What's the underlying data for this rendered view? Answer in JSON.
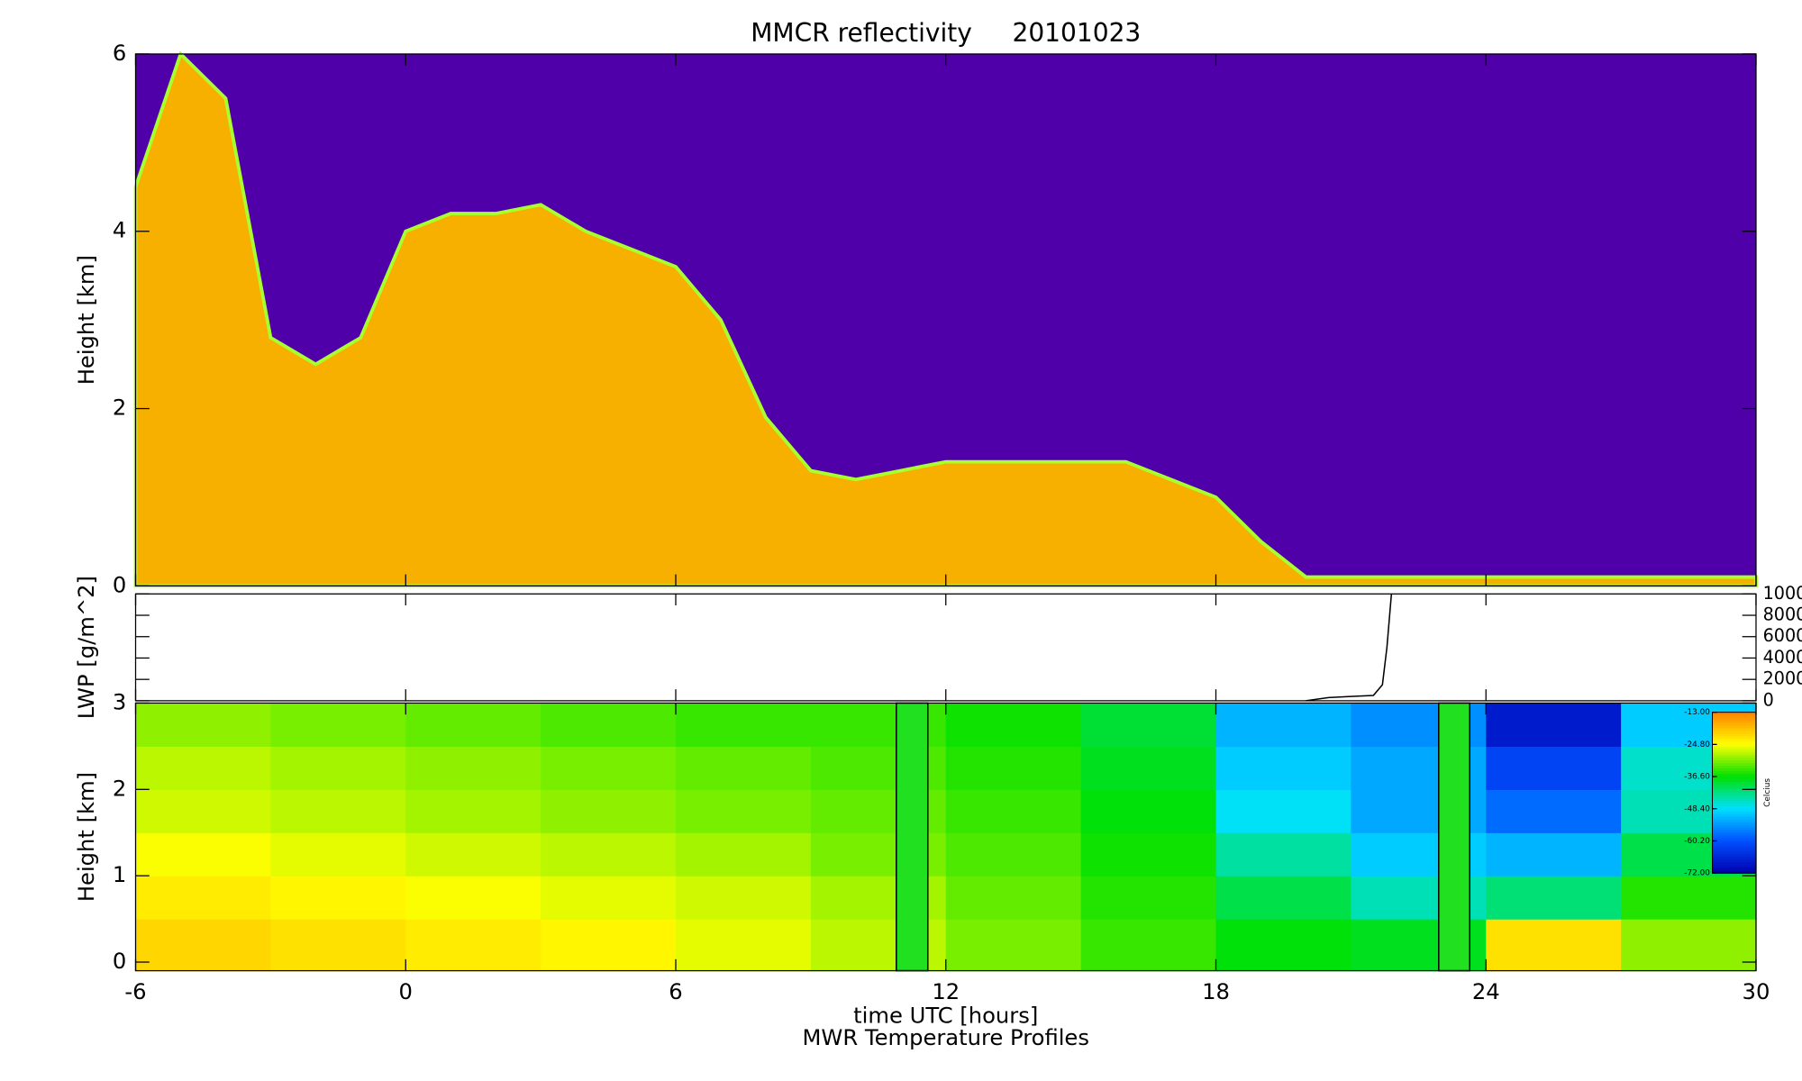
{
  "chart_data": [
    {
      "type": "area",
      "title": "MMCR reflectivity     20101023",
      "ylabel": "Height [km]",
      "x": [
        -6,
        -5,
        -4,
        -3,
        -2,
        -1,
        0,
        1,
        2,
        3,
        4,
        5,
        6,
        7,
        8,
        9,
        10,
        11,
        12,
        13,
        14,
        15,
        16,
        17,
        18,
        19,
        20,
        21,
        22,
        23,
        24,
        25,
        26,
        27,
        28,
        29,
        30
      ],
      "values": [
        4.5,
        6,
        5.5,
        2.8,
        2.5,
        2.8,
        4,
        4.2,
        4.2,
        4.3,
        4,
        3.8,
        3.6,
        3,
        1.9,
        1.3,
        1.2,
        1.3,
        1.4,
        1.4,
        1.4,
        1.4,
        1.4,
        1.2,
        1,
        0.5,
        0.1,
        0.1,
        0.1,
        0.1,
        0.1,
        0.1,
        0.1,
        0.1,
        0.1,
        0.1,
        0.1
      ],
      "color": "#f8b000",
      "edge_color": "#a8ff30",
      "background": "#5000a8",
      "xlim": [
        -6,
        30
      ],
      "ylim": [
        0,
        6
      ],
      "yticks": [
        0,
        2,
        4,
        6
      ]
    },
    {
      "type": "line",
      "ylabel": "LWP [g/m^2]",
      "x": [
        20,
        20.5,
        21,
        21.5,
        21.7,
        21.8,
        21.9
      ],
      "values": [
        0,
        300,
        400,
        500,
        1500,
        5000,
        10000
      ],
      "color": "#000000",
      "xlim": [
        -6,
        30
      ],
      "ylim": [
        0,
        10000
      ],
      "y2ticks": [
        0,
        2000,
        4000,
        6000,
        8000,
        10000
      ]
    },
    {
      "type": "heatmap",
      "ylabel": "Height [km]",
      "xlabel": "time UTC [hours]",
      "subtitle": "MWR Temperature Profiles",
      "x_edges": [
        -6,
        -3,
        0,
        3,
        6,
        9,
        12,
        15,
        18,
        21,
        24,
        27,
        30
      ],
      "y_edges": [
        -0.1,
        0.5,
        1,
        1.5,
        2,
        2.5,
        3
      ],
      "z": [
        [
          -21,
          -22,
          -23,
          -24,
          -26,
          -28,
          -31,
          -34,
          -37,
          -38,
          -22,
          -30
        ],
        [
          -23,
          -24,
          -25,
          -26,
          -27,
          -29,
          -32,
          -35,
          -40,
          -45,
          -42,
          -35
        ],
        [
          -25,
          -26,
          -27,
          -28,
          -29,
          -31,
          -33,
          -36,
          -44,
          -50,
          -52,
          -40
        ],
        [
          -27,
          -28,
          -29,
          -30,
          -31,
          -32,
          -34,
          -37,
          -48,
          -53,
          -58,
          -45
        ],
        [
          -28,
          -29,
          -30,
          -31,
          -32,
          -33,
          -35,
          -38,
          -50,
          -53,
          -62,
          -46
        ],
        [
          -30,
          -31,
          -32,
          -33,
          -34,
          -34,
          -36,
          -39,
          -52,
          -55,
          -68,
          -50
        ]
      ],
      "gaps": [
        [
          10.9,
          11.6
        ],
        [
          22.95,
          23.64
        ]
      ],
      "gap_color": "#20e020",
      "xlim": [
        -6,
        30
      ],
      "ylim": [
        -0.1,
        3
      ],
      "xticks": [
        -6,
        0,
        6,
        12,
        18,
        24,
        30
      ],
      "yticks": [
        0,
        1,
        2,
        3
      ],
      "colorbar_label": "Celcius",
      "colorbar_ticks": [
        {
          "value": -13,
          "label": "-13.00"
        },
        {
          "value": -24.8,
          "label": "-24.80"
        },
        {
          "value": -36.6,
          "label": "-36.60"
        },
        {
          "value": -48.4,
          "label": "-48.40"
        },
        {
          "value": -60.2,
          "label": "-60.20"
        },
        {
          "value": -72,
          "label": "-72.00"
        }
      ],
      "colormap": [
        "#ff8000",
        "#ffff00",
        "#00e000",
        "#00e0ff",
        "#0050ff",
        "#0000b0"
      ]
    }
  ]
}
